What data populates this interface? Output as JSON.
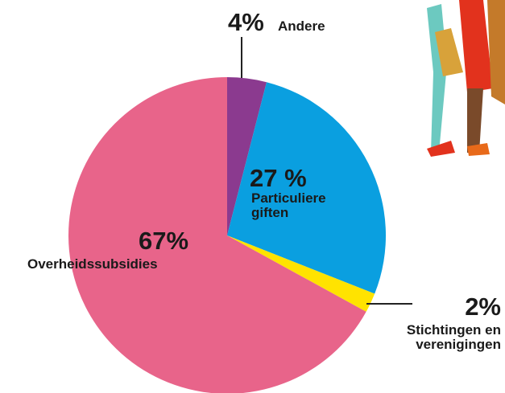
{
  "chart_data": {
    "type": "pie",
    "categories": [
      "Andere",
      "Particuliere giften",
      "Stichtingen en verenigingen",
      "Overheidssubsidies"
    ],
    "values": [
      4,
      27,
      2,
      67
    ],
    "value_labels": [
      "4%",
      "27 %",
      "2%",
      "67%"
    ],
    "colors": [
      "#8b3a8f",
      "#0a9fe0",
      "#ffe300",
      "#e8648a"
    ]
  }
}
